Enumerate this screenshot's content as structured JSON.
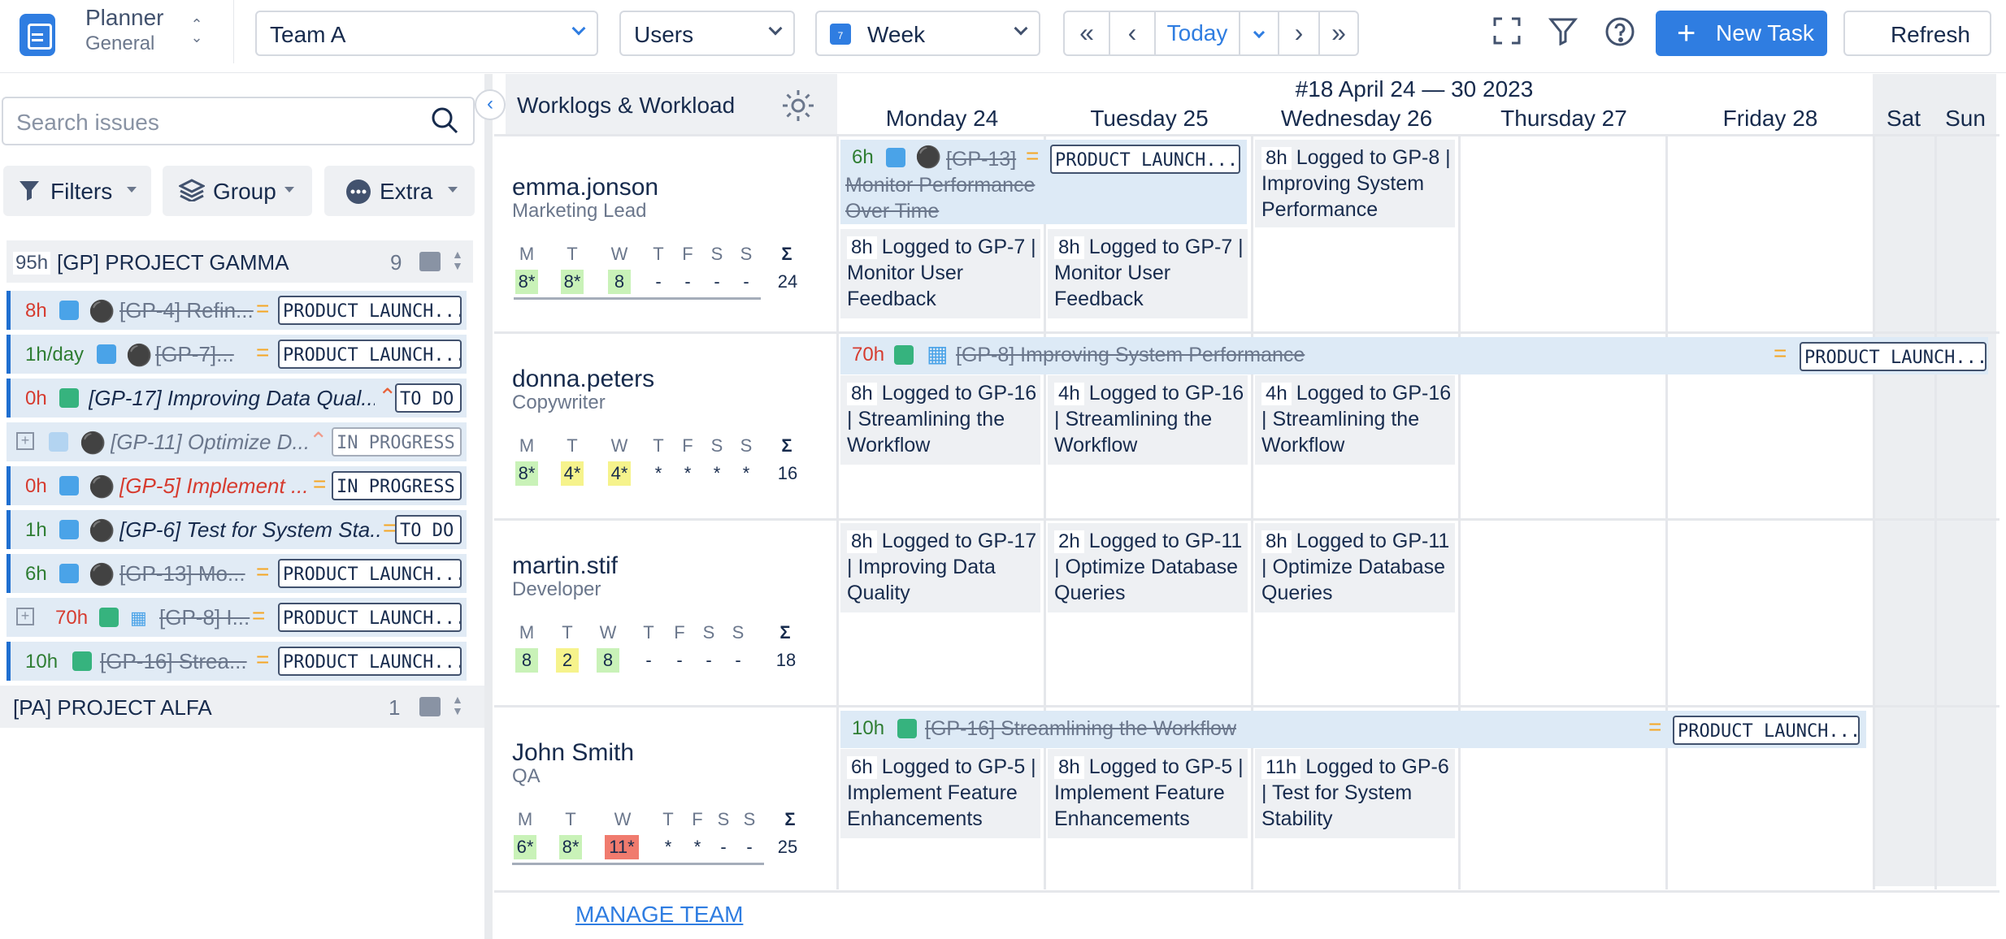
{
  "app": {
    "title": "Planner",
    "subtitle": "General"
  },
  "toolbar": {
    "team": "Team A",
    "group_by": "Users",
    "view": "Week",
    "view_icon_num": "7",
    "today": "Today",
    "new_task": "New Task",
    "refresh": "Refresh"
  },
  "sidebar": {
    "search_placeholder": "Search issues",
    "filters": "Filters",
    "group": "Group",
    "extra": "Extra",
    "projects": [
      {
        "hours": "95h",
        "name": "[GP] PROJECT GAMMA",
        "count": "9"
      },
      {
        "hours": "",
        "name": "[PA] PROJECT ALFA",
        "count": "1"
      }
    ],
    "issues": [
      {
        "hours": "8h",
        "title": "[GP-4] Refin...",
        "status": "PRODUCT LAUNCH..."
      },
      {
        "hours": "1h/day",
        "title": "[GP-7]...",
        "status": "PRODUCT LAUNCH..."
      },
      {
        "hours": "0h",
        "title": "[GP-17] Improving Data Qual...",
        "status": "TO DO"
      },
      {
        "hours": "",
        "title": "[GP-11] Optimize D...",
        "status": "IN PROGRESS"
      },
      {
        "hours": "0h",
        "title": "[GP-5] Implement ...",
        "status": "IN PROGRESS"
      },
      {
        "hours": "1h",
        "title": "[GP-6] Test for System Sta...",
        "status": "TO DO"
      },
      {
        "hours": "6h",
        "title": "[GP-13] Mo...",
        "status": "PRODUCT LAUNCH..."
      },
      {
        "hours": "70h",
        "title": "[GP-8] I...",
        "status": "PRODUCT LAUNCH..."
      },
      {
        "hours": "10h",
        "title": "[GP-16] Strea...",
        "status": "PRODUCT LAUNCH..."
      }
    ]
  },
  "grid": {
    "header": "Worklogs & Workload",
    "week": "#18 April 24 — 30 2023",
    "days": [
      "Monday 24",
      "Tuesday 25",
      "Wednesday 26",
      "Thursday 27",
      "Friday 28",
      "Sat",
      "Sun"
    ],
    "day_letters": [
      "M",
      "T",
      "W",
      "T",
      "F",
      "S",
      "S"
    ],
    "sum_symbol": "Σ",
    "manage_team": "MANAGE TEAM"
  },
  "users": [
    {
      "name": "emma.jonson",
      "role": "Marketing Lead",
      "week": [
        "8*",
        "8*",
        "8",
        "-",
        "-",
        "-",
        "-"
      ],
      "total": "24",
      "bar": {
        "hours": "6h",
        "title": "[GP-13] Monitor Performance Over Time",
        "status": "PRODUCT LAUNCH..."
      },
      "logs": [
        {
          "h": "8h",
          "text": "Logged to GP-7 | Monitor User Feedback"
        },
        {
          "h": "8h",
          "text": "Logged to GP-7 | Monitor User Feedback"
        },
        {
          "h": "8h",
          "text": "Logged to GP-8 | Improving System Performance"
        }
      ]
    },
    {
      "name": "donna.peters",
      "role": "Copywriter",
      "week": [
        "8*",
        "4*",
        "4*",
        "*",
        "*",
        "*",
        "*"
      ],
      "total": "16",
      "bar": {
        "hours": "70h",
        "title": "[GP-8] Improving System Performance",
        "status": "PRODUCT LAUNCH..."
      },
      "logs": [
        {
          "h": "8h",
          "text": "Logged to GP-16 | Streamlining the Workflow"
        },
        {
          "h": "4h",
          "text": "Logged to GP-16 | Streamlining the Workflow"
        },
        {
          "h": "4h",
          "text": "Logged to GP-16 | Streamlining the Workflow"
        }
      ]
    },
    {
      "name": "martin.stif",
      "role": "Developer",
      "week": [
        "8",
        "2",
        "8",
        "-",
        "-",
        "-",
        "-"
      ],
      "total": "18",
      "logs": [
        {
          "h": "8h",
          "text": "Logged to GP-17 | Improving Data Quality"
        },
        {
          "h": "2h",
          "text": "Logged to GP-11 | Optimize Database Queries"
        },
        {
          "h": "8h",
          "text": "Logged to GP-11 | Optimize Database Queries"
        }
      ]
    },
    {
      "name": "John Smith",
      "role": "QA",
      "week": [
        "6*",
        "8*",
        "11*",
        "*",
        "*",
        "-",
        "-"
      ],
      "total": "25",
      "bar": {
        "hours": "10h",
        "title": "[GP-16] Streamlining the Workflow",
        "status": "PRODUCT LAUNCH..."
      },
      "logs": [
        {
          "h": "6h",
          "text": "Logged to GP-5 | Implement Feature Enhancements"
        },
        {
          "h": "8h",
          "text": "Logged to GP-5 | Implement Feature Enhancements"
        },
        {
          "h": "11h",
          "text": "Logged to GP-6 | Test for System Stability"
        }
      ]
    }
  ],
  "colors": {
    "accent": "#2f7de1",
    "story": "#36b37e",
    "task": "#4aa3e8",
    "over": "#f07b6e",
    "ok": "#c9f2b8",
    "under": "#f6f38c"
  }
}
